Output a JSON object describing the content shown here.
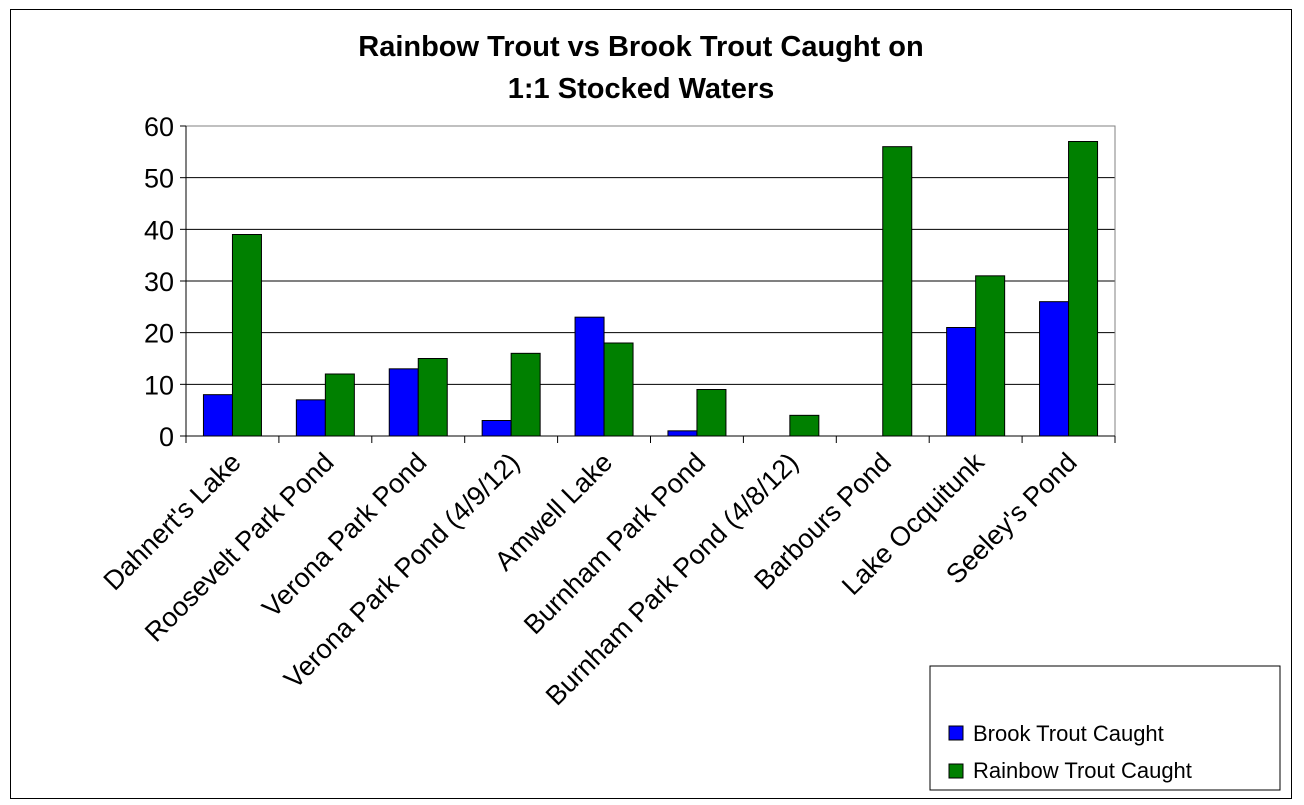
{
  "chart_data": {
    "type": "bar",
    "title": [
      "Rainbow Trout vs Brook Trout Caught on",
      "1:1 Stocked Waters"
    ],
    "xlabel": "",
    "ylabel": "",
    "ylim": [
      0,
      60
    ],
    "yticks": [
      0,
      10,
      20,
      30,
      40,
      50,
      60
    ],
    "grid": true,
    "legend_position": "bottom-right",
    "categories": [
      "Dahnert's Lake",
      "Roosevelt Park Pond",
      "Verona Park Pond",
      "Verona Park Pond (4/9/12)",
      "Amwell Lake",
      "Burnham Park Pond",
      "Burnham Park Pond (4/8/12)",
      "Barbours Pond",
      "Lake Ocquitunk",
      "Seeley's Pond"
    ],
    "series": [
      {
        "name": "Brook Trout Caught",
        "color": "#0000ff",
        "values": [
          8,
          7,
          13,
          3,
          23,
          1,
          0,
          0,
          21,
          26
        ]
      },
      {
        "name": "Rainbow Trout Caught",
        "color": "#008000",
        "values": [
          39,
          12,
          15,
          16,
          18,
          9,
          4,
          56,
          31,
          57
        ]
      }
    ]
  }
}
